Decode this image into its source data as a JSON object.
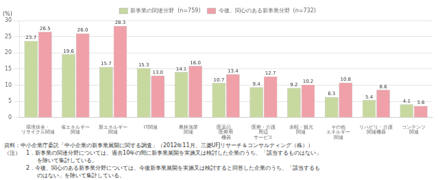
{
  "chart_data": {
    "type": "bar",
    "ylabel": "(%)",
    "categories": [
      "環境保全・\nリサイクル関連",
      "省エネルギー\n関連",
      "新エネルギー\n関連",
      "IT関連",
      "農林漁業\n関連",
      "医薬品、\n医療用\n機器",
      "医療・介護\n周辺\nサービス",
      "余暇・観光\n関連",
      "その他\nエネルギー\n関連",
      "リハビリ・介護\n関連機器",
      "コンテンツ\n関連"
    ],
    "series": [
      {
        "name": "新事業の関連分野  (n=759)",
        "color": "#c8d9a0",
        "values": [
          23.7,
          19.6,
          15.7,
          15.3,
          14.1,
          10.7,
          9.4,
          9.2,
          6.3,
          5.4,
          4.1
        ],
        "value_labels": [
          "23.7",
          "19.6",
          "15.7",
          "15.3",
          "14.1",
          "10.7",
          "9.4",
          "9.2",
          "6.3",
          "5.4",
          "4.1"
        ]
      },
      {
        "name": "今後、関心のある新事業分野  (n=732)",
        "color": "#f0a0a8",
        "values": [
          26.5,
          26.0,
          28.3,
          13.0,
          16.0,
          13.4,
          12.7,
          10.2,
          10.8,
          8.6,
          3.6
        ],
        "value_labels": [
          "26.5",
          "26.0",
          "28.3",
          "13.0",
          "16.0",
          "13.4",
          "12.7",
          "10.2",
          "10.8",
          "8.6",
          "3.6"
        ]
      }
    ],
    "ylim": [
      0,
      30
    ],
    "yticks": [
      0,
      5,
      10,
      15,
      20,
      25,
      30
    ],
    "grid": true,
    "legend": "top",
    "data_labels": true,
    "annotations": [
      "資料：中小企業庁委託「中小企業の新事業展開に関する調査」（2012年11月、三菱UFJリサーチ＆コンサルティング（株））",
      "（注）　1．新事業の関連分野については、過去10年の間に新事業展開を実施又は検討した企業のうち、「該当するものはない」",
      "　　　　　　を除いて集計している。",
      "　　　　2．今後、関心のある新事業分野については、今後新事業展開を実施又は検討すると回答した企業のうち、「該当するも",
      "　　　　　　のはない」を除いて集計している。"
    ]
  }
}
